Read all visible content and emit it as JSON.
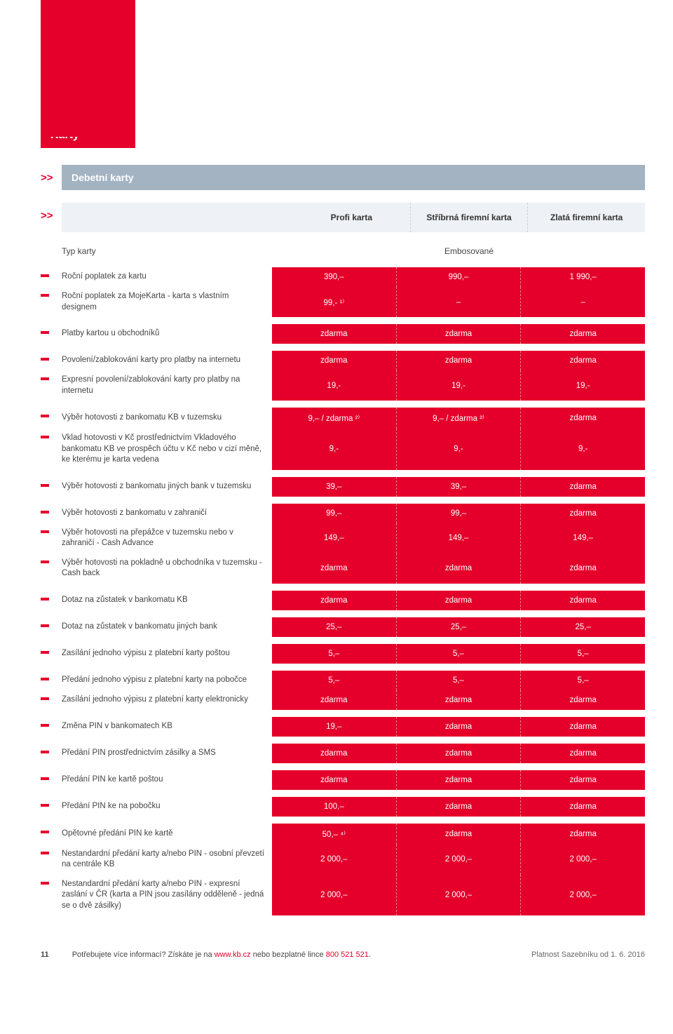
{
  "colors": {
    "brand_red": "#e4002b",
    "header_gray": "#a3b3c2",
    "col_bg": "#eef1f5",
    "text": "#4a4a4a",
    "dash_border": "#c5cfd9"
  },
  "title": "Karty",
  "subtitle": "Debetní karty",
  "columns": [
    "Profi karta",
    "Stříbrná firemní karta",
    "Zlatá firemní karta"
  ],
  "type_label": "Typ karty",
  "type_value": "Embosované",
  "groups": [
    {
      "rows": [
        {
          "label": "Roční poplatek za kartu",
          "vals": [
            "390,–",
            "990,–",
            "1 990,–"
          ]
        },
        {
          "label": "Roční poplatek za MojeKarta - karta s vlastním designem",
          "vals": [
            "99,- ¹⁾",
            "–",
            "–"
          ]
        }
      ]
    },
    {
      "rows": [
        {
          "label": "Platby kartou u obchodníků",
          "vals": [
            "zdarma",
            "zdarma",
            "zdarma"
          ]
        }
      ]
    },
    {
      "rows": [
        {
          "label": "Povolení/zablokování karty pro platby na internetu",
          "vals": [
            "zdarma",
            "zdarma",
            "zdarma"
          ]
        },
        {
          "label": "Expresní povolení/zablokování karty pro platby na internetu",
          "vals": [
            "19,-",
            "19,-",
            "19,-"
          ]
        }
      ]
    },
    {
      "rows": [
        {
          "label": "Výběr hotovosti z bankomatu KB v tuzemsku",
          "vals": [
            "9,– / zdarma ²⁾",
            "9,– / zdarma ²⁾",
            "zdarma"
          ]
        },
        {
          "label": "Vklad hotovosti v Kč prostřednictvím Vkladového bankomatu KB ve prospěch účtu v Kč nebo v cizí měně, ke kterému je karta vedena",
          "vals": [
            "9,-",
            "9,-",
            "9,-"
          ]
        }
      ]
    },
    {
      "rows": [
        {
          "label": "Výběr hotovosti z bankomatu jiných bank v tuzemsku",
          "vals": [
            "39,–",
            "39,–",
            "zdarma"
          ]
        }
      ]
    },
    {
      "rows": [
        {
          "label": "Výběr hotovosti z bankomatu v zahraničí",
          "vals": [
            "99,–",
            "99,–",
            "zdarma"
          ]
        },
        {
          "label": "Výběr hotovosti na přepážce v tuzemsku nebo v zahraničí - Cash Advance",
          "vals": [
            "149,–",
            "149,–",
            "149,–"
          ]
        },
        {
          "label": "Výběr hotovosti na pokladně u obchodníka v tuzemsku - Cash back",
          "vals": [
            "zdarma",
            "zdarma",
            "zdarma"
          ]
        }
      ]
    },
    {
      "rows": [
        {
          "label": "Dotaz na zůstatek v bankomatu KB",
          "vals": [
            "zdarma",
            "zdarma",
            "zdarma"
          ]
        }
      ]
    },
    {
      "rows": [
        {
          "label": "Dotaz na zůstatek v bankomatu jiných bank",
          "vals": [
            "25,–",
            "25,–",
            "25,–"
          ]
        }
      ]
    },
    {
      "rows": [
        {
          "label": "Zasílání jednoho výpisu z platební karty poštou",
          "vals": [
            "5,–",
            "5,–",
            "5,–"
          ]
        }
      ]
    },
    {
      "rows": [
        {
          "label": "Předání jednoho výpisu z platební karty na pobočce",
          "vals": [
            "5,–",
            "5,–",
            "5,–"
          ]
        },
        {
          "label": "Zasílání jednoho výpisu z platební karty elektronicky",
          "vals": [
            "zdarma",
            "zdarma",
            "zdarma"
          ]
        }
      ]
    },
    {
      "rows": [
        {
          "label": "Změna PIN v bankomatech KB",
          "vals": [
            "19,–",
            "zdarma",
            "zdarma"
          ]
        }
      ]
    },
    {
      "rows": [
        {
          "label": "Předání PIN prostřednictvím zásilky a SMS",
          "vals": [
            "zdarma",
            "zdarma",
            "zdarma"
          ]
        }
      ]
    },
    {
      "rows": [
        {
          "label": "Předání PIN ke kartě poštou",
          "vals": [
            "zdarma",
            "zdarma",
            "zdarma"
          ]
        }
      ]
    },
    {
      "rows": [
        {
          "label": "Předání PIN ke na pobočku",
          "vals": [
            "100,–",
            "zdarma",
            "zdarma"
          ]
        }
      ]
    },
    {
      "rows": [
        {
          "label": "Opětovné předání PIN ke kartě",
          "vals": [
            "50,– ⁴⁾",
            "zdarma",
            "zdarma"
          ]
        },
        {
          "label": "Nestandardní předání karty a/nebo PIN - osobní převzetí na centrále KB",
          "vals": [
            "2 000,–",
            "2 000,–",
            "2 000,–"
          ]
        },
        {
          "label": "Nestandardní předání karty a/nebo PIN - expresní zaslání v ČR\n(karta a PIN jsou zasílány odděleně - jedná se o dvě zásilky)",
          "vals": [
            "2 000,–",
            "2 000,–",
            "2 000,–"
          ]
        }
      ]
    }
  ],
  "footer": {
    "page": "11",
    "info_prefix": "Potřebujete více informací? Získáte je na ",
    "link": "www.kb.cz",
    "info_mid": " nebo bezplatné lince ",
    "phone": "800 521 521",
    "info_suffix": ".",
    "validity": "Platnost Sazebníku od 1. 6. 2016"
  }
}
